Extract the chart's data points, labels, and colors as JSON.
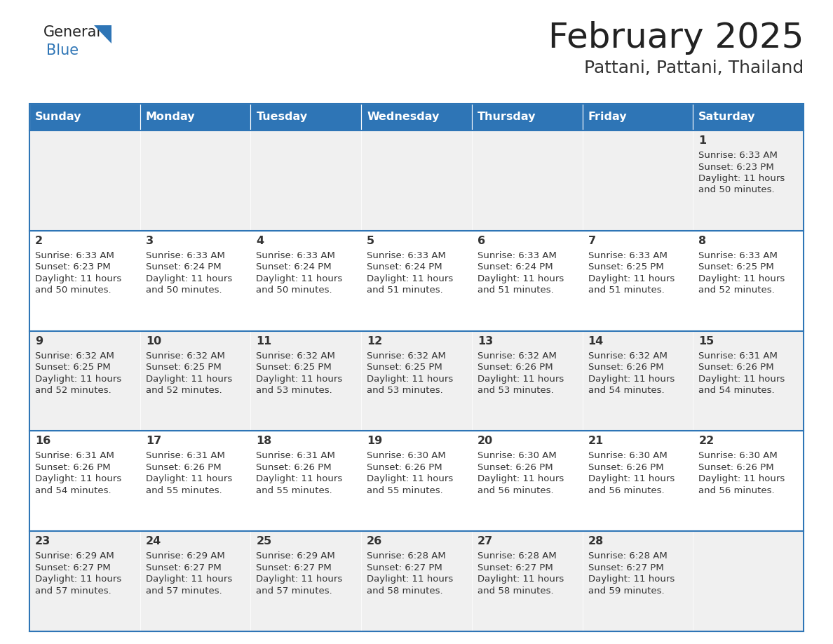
{
  "title": "February 2025",
  "subtitle": "Pattani, Pattani, Thailand",
  "header_bg": "#2e75b6",
  "header_text_color": "#ffffff",
  "cell_bg_gray": "#f0f0f0",
  "cell_bg_white": "#ffffff",
  "border_color": "#2e75b6",
  "text_color": "#333333",
  "days_of_week": [
    "Sunday",
    "Monday",
    "Tuesday",
    "Wednesday",
    "Thursday",
    "Friday",
    "Saturday"
  ],
  "calendar_data": [
    [
      null,
      null,
      null,
      null,
      null,
      null,
      {
        "day": "1",
        "sunrise": "6:33 AM",
        "sunset": "6:23 PM",
        "daylight1": "11 hours",
        "daylight2": "and 50 minutes."
      }
    ],
    [
      {
        "day": "2",
        "sunrise": "6:33 AM",
        "sunset": "6:23 PM",
        "daylight1": "11 hours",
        "daylight2": "and 50 minutes."
      },
      {
        "day": "3",
        "sunrise": "6:33 AM",
        "sunset": "6:24 PM",
        "daylight1": "11 hours",
        "daylight2": "and 50 minutes."
      },
      {
        "day": "4",
        "sunrise": "6:33 AM",
        "sunset": "6:24 PM",
        "daylight1": "11 hours",
        "daylight2": "and 50 minutes."
      },
      {
        "day": "5",
        "sunrise": "6:33 AM",
        "sunset": "6:24 PM",
        "daylight1": "11 hours",
        "daylight2": "and 51 minutes."
      },
      {
        "day": "6",
        "sunrise": "6:33 AM",
        "sunset": "6:24 PM",
        "daylight1": "11 hours",
        "daylight2": "and 51 minutes."
      },
      {
        "day": "7",
        "sunrise": "6:33 AM",
        "sunset": "6:25 PM",
        "daylight1": "11 hours",
        "daylight2": "and 51 minutes."
      },
      {
        "day": "8",
        "sunrise": "6:33 AM",
        "sunset": "6:25 PM",
        "daylight1": "11 hours",
        "daylight2": "and 52 minutes."
      }
    ],
    [
      {
        "day": "9",
        "sunrise": "6:32 AM",
        "sunset": "6:25 PM",
        "daylight1": "11 hours",
        "daylight2": "and 52 minutes."
      },
      {
        "day": "10",
        "sunrise": "6:32 AM",
        "sunset": "6:25 PM",
        "daylight1": "11 hours",
        "daylight2": "and 52 minutes."
      },
      {
        "day": "11",
        "sunrise": "6:32 AM",
        "sunset": "6:25 PM",
        "daylight1": "11 hours",
        "daylight2": "and 53 minutes."
      },
      {
        "day": "12",
        "sunrise": "6:32 AM",
        "sunset": "6:25 PM",
        "daylight1": "11 hours",
        "daylight2": "and 53 minutes."
      },
      {
        "day": "13",
        "sunrise": "6:32 AM",
        "sunset": "6:26 PM",
        "daylight1": "11 hours",
        "daylight2": "and 53 minutes."
      },
      {
        "day": "14",
        "sunrise": "6:32 AM",
        "sunset": "6:26 PM",
        "daylight1": "11 hours",
        "daylight2": "and 54 minutes."
      },
      {
        "day": "15",
        "sunrise": "6:31 AM",
        "sunset": "6:26 PM",
        "daylight1": "11 hours",
        "daylight2": "and 54 minutes."
      }
    ],
    [
      {
        "day": "16",
        "sunrise": "6:31 AM",
        "sunset": "6:26 PM",
        "daylight1": "11 hours",
        "daylight2": "and 54 minutes."
      },
      {
        "day": "17",
        "sunrise": "6:31 AM",
        "sunset": "6:26 PM",
        "daylight1": "11 hours",
        "daylight2": "and 55 minutes."
      },
      {
        "day": "18",
        "sunrise": "6:31 AM",
        "sunset": "6:26 PM",
        "daylight1": "11 hours",
        "daylight2": "and 55 minutes."
      },
      {
        "day": "19",
        "sunrise": "6:30 AM",
        "sunset": "6:26 PM",
        "daylight1": "11 hours",
        "daylight2": "and 55 minutes."
      },
      {
        "day": "20",
        "sunrise": "6:30 AM",
        "sunset": "6:26 PM",
        "daylight1": "11 hours",
        "daylight2": "and 56 minutes."
      },
      {
        "day": "21",
        "sunrise": "6:30 AM",
        "sunset": "6:26 PM",
        "daylight1": "11 hours",
        "daylight2": "and 56 minutes."
      },
      {
        "day": "22",
        "sunrise": "6:30 AM",
        "sunset": "6:26 PM",
        "daylight1": "11 hours",
        "daylight2": "and 56 minutes."
      }
    ],
    [
      {
        "day": "23",
        "sunrise": "6:29 AM",
        "sunset": "6:27 PM",
        "daylight1": "11 hours",
        "daylight2": "and 57 minutes."
      },
      {
        "day": "24",
        "sunrise": "6:29 AM",
        "sunset": "6:27 PM",
        "daylight1": "11 hours",
        "daylight2": "and 57 minutes."
      },
      {
        "day": "25",
        "sunrise": "6:29 AM",
        "sunset": "6:27 PM",
        "daylight1": "11 hours",
        "daylight2": "and 57 minutes."
      },
      {
        "day": "26",
        "sunrise": "6:28 AM",
        "sunset": "6:27 PM",
        "daylight1": "11 hours",
        "daylight2": "and 58 minutes."
      },
      {
        "day": "27",
        "sunrise": "6:28 AM",
        "sunset": "6:27 PM",
        "daylight1": "11 hours",
        "daylight2": "and 58 minutes."
      },
      {
        "day": "28",
        "sunrise": "6:28 AM",
        "sunset": "6:27 PM",
        "daylight1": "11 hours",
        "daylight2": "and 59 minutes."
      },
      null
    ]
  ]
}
